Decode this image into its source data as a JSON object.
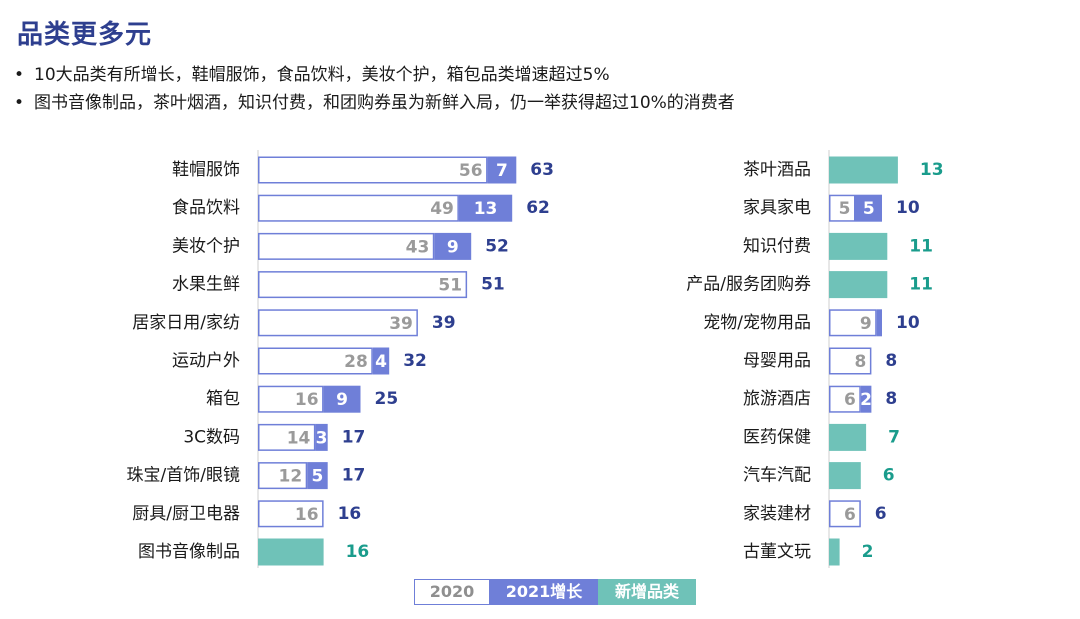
{
  "title": "品类更多元",
  "bullets": [
    "10大品类有所增长，鞋帽服饰，食品饮料，美妆个护，箱包品类增速超过5%",
    "图书音像制品，茶叶烟酒，知识付费，和团购券虽为新鲜入局，仍一举获得超过10%的消费者"
  ],
  "legend": {
    "y2020": "2020",
    "growth": "2021增长",
    "new": "新增品类"
  },
  "colors": {
    "border_2020": "#6f7fd8",
    "growth": "#6f7fd8",
    "new": "#6fc2b8",
    "total_text": "#2e3f8f",
    "new_text": "#1a9c8c",
    "base_text": "#9a9a9a"
  },
  "chart_data": [
    {
      "type": "bar",
      "orientation": "horizontal",
      "stacked": true,
      "categories": [
        "鞋帽服饰",
        "食品饮料",
        "美妆个护",
        "水果生鲜",
        "居家日用/家纺",
        "运动户外",
        "箱包",
        "3C数码",
        "珠宝/首饰/眼镜",
        "厨具/厨卫电器",
        "图书音像制品"
      ],
      "series": [
        {
          "name": "2020",
          "values": [
            56,
            49,
            43,
            51,
            39,
            28,
            16,
            14,
            12,
            16,
            null
          ]
        },
        {
          "name": "2021增长",
          "values": [
            7,
            13,
            9,
            null,
            null,
            4,
            9,
            3,
            5,
            null,
            null
          ]
        },
        {
          "name": "新增品类",
          "values": [
            null,
            null,
            null,
            null,
            null,
            null,
            null,
            null,
            null,
            null,
            16
          ]
        }
      ],
      "totals": [
        63,
        62,
        52,
        51,
        39,
        32,
        25,
        17,
        17,
        16,
        16
      ]
    },
    {
      "type": "bar",
      "orientation": "horizontal",
      "stacked": true,
      "categories": [
        "茶叶酒品",
        "家具家电",
        "知识付费",
        "产品/服务团购券",
        "宠物/宠物用品",
        "母婴用品",
        "旅游酒店",
        "医药保健",
        "汽车汽配",
        "家装建材",
        "古董文玩"
      ],
      "series": [
        {
          "name": "2020",
          "values": [
            null,
            5,
            null,
            null,
            9,
            8,
            6,
            null,
            null,
            6,
            null
          ]
        },
        {
          "name": "2021增长",
          "values": [
            null,
            5,
            null,
            null,
            1,
            null,
            2,
            null,
            null,
            null,
            null
          ]
        },
        {
          "name": "新增品类",
          "values": [
            13,
            null,
            11,
            11,
            null,
            null,
            null,
            7,
            6,
            null,
            2
          ]
        }
      ],
      "totals": [
        13,
        10,
        11,
        11,
        10,
        8,
        8,
        7,
        6,
        6,
        2
      ]
    }
  ]
}
